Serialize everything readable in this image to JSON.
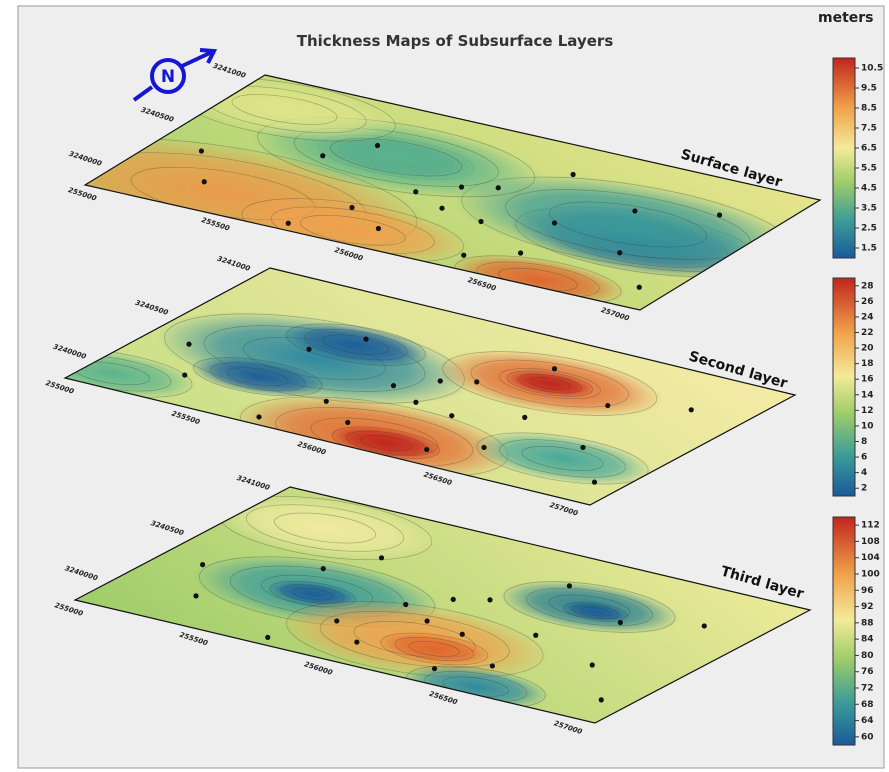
{
  "title": "Thickness Maps of Subsurface Layers",
  "unit": "meters",
  "layers": [
    {
      "label": "Surface layer",
      "colorbar": [
        1.5,
        2.5,
        3.5,
        4.5,
        5.5,
        6.5,
        7.5,
        8.5,
        9.5,
        10.5
      ],
      "northing": [
        "3241000",
        "3240500",
        "3240000"
      ],
      "easting": [
        "255000",
        "255500",
        "256000",
        "256500",
        "257000"
      ]
    },
    {
      "label": "Second layer",
      "colorbar": [
        2,
        4,
        6,
        8,
        10,
        12,
        14,
        16,
        18,
        20,
        22,
        24,
        26,
        28
      ],
      "northing": [
        "3241000",
        "3240500",
        "3240000"
      ],
      "easting": [
        "255000",
        "255500",
        "256000",
        "256500",
        "257000"
      ]
    },
    {
      "label": "Third layer",
      "colorbar": [
        60,
        64,
        68,
        72,
        76,
        80,
        84,
        88,
        92,
        96,
        100,
        104,
        108,
        112
      ],
      "northing": [
        "3241000",
        "3240500",
        "3240000"
      ],
      "easting": [
        "255000",
        "255500",
        "256000",
        "256500",
        "257000"
      ]
    }
  ]
}
